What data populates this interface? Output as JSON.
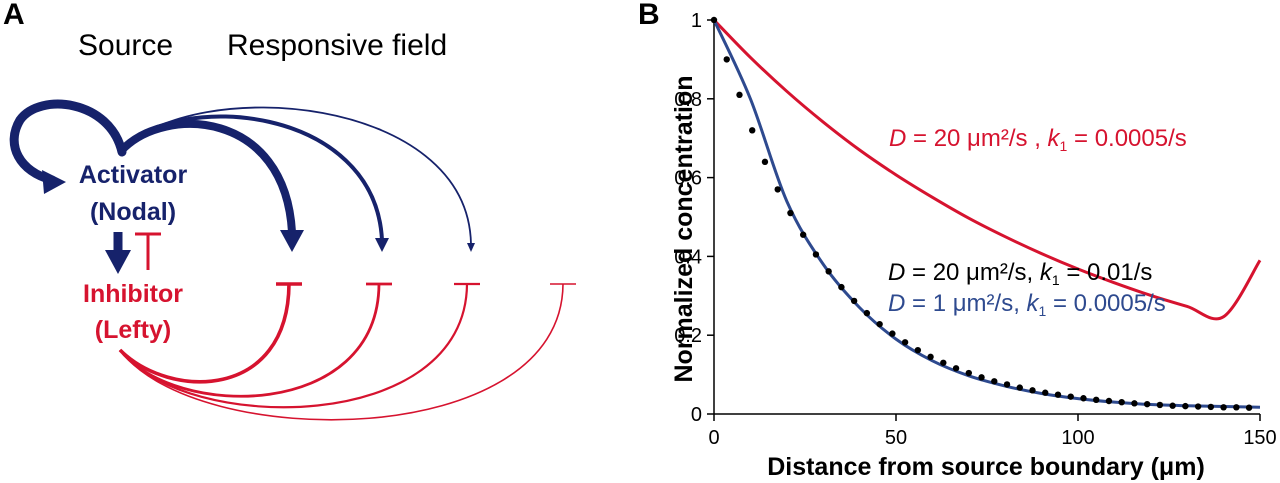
{
  "colors": {
    "activator": "#16226b",
    "inhibitor": "#d6132f",
    "fit_blue": "#2e4a8f",
    "black": "#000000"
  },
  "panel_a": {
    "label": "A",
    "header_source": "Source",
    "header_field": "Responsive field",
    "activator_line1": "Activator",
    "activator_line2": "(Nodal)",
    "inhibitor_line1": "Inhibitor",
    "inhibitor_line2": "(Lefty)"
  },
  "panel_b": {
    "label": "B",
    "annotations": {
      "red": {
        "D": "D",
        "mid": " = 20 μm²/s ,  ",
        "k": "k",
        "sub": "1",
        "end": " = 0.0005/s"
      },
      "black": {
        "D": "D",
        "mid": " = 20 μm²/s,  ",
        "k": "k",
        "sub": "1",
        "end": " = 0.01/s"
      },
      "blue": {
        "D": "D",
        "mid": " = 1 μm²/s,  ",
        "k": "k",
        "sub": "1",
        "end": " = 0.0005/s"
      }
    }
  },
  "chart_data": {
    "type": "line",
    "xlabel": "Distance from source boundary (μm)",
    "ylabel": "Normalized concentration",
    "xlim": [
      0,
      150
    ],
    "ylim": [
      0,
      1
    ],
    "x_ticks": [
      0,
      50,
      100,
      150
    ],
    "y_ticks": [
      0,
      0.2,
      0.4,
      0.6,
      0.8,
      1
    ],
    "y_tick_labels": [
      "0",
      "0.2",
      "0.4",
      "0.6",
      "0.8",
      "1"
    ],
    "grid": false,
    "series": [
      {
        "style": "line",
        "color": "#d6132f",
        "x": [
          0,
          10,
          20,
          30,
          40,
          50,
          60,
          70,
          80,
          90,
          100,
          110,
          120,
          130,
          140,
          150
        ],
        "y": [
          1,
          0.905,
          0.819,
          0.741,
          0.67,
          0.607,
          0.55,
          0.497,
          0.45,
          0.407,
          0.368,
          0.333,
          0.301,
          0.273,
          0.247,
          0.39
        ]
      },
      {
        "style": "line",
        "color": "#2e4a8f",
        "x": [
          0,
          10,
          20,
          30,
          40,
          50,
          60,
          70,
          80,
          90,
          100,
          110,
          120,
          130,
          140,
          150
        ],
        "y": [
          1,
          0.8,
          0.54,
          0.38,
          0.27,
          0.19,
          0.135,
          0.097,
          0.071,
          0.052,
          0.039,
          0.03,
          0.024,
          0.021,
          0.019,
          0.017
        ]
      },
      {
        "style": "dots",
        "color": "#000000",
        "x": [
          0,
          3.5,
          7,
          10.5,
          14,
          17.5,
          21,
          24.5,
          28,
          31.5,
          35,
          38.5,
          42,
          45.5,
          49,
          52.5,
          56,
          59.5,
          63,
          66.5,
          70,
          73.5,
          77,
          80.5,
          84,
          87.5,
          91,
          94.5,
          98,
          101.5,
          105,
          108.5,
          112,
          115.5,
          119,
          122.5,
          126,
          129.5,
          133,
          136.5,
          140,
          143.5,
          147
        ],
        "y": [
          1,
          0.9,
          0.81,
          0.72,
          0.64,
          0.57,
          0.51,
          0.455,
          0.405,
          0.362,
          0.322,
          0.287,
          0.256,
          0.228,
          0.204,
          0.182,
          0.162,
          0.145,
          0.13,
          0.116,
          0.104,
          0.093,
          0.083,
          0.075,
          0.067,
          0.06,
          0.054,
          0.049,
          0.044,
          0.04,
          0.036,
          0.033,
          0.03,
          0.027,
          0.025,
          0.023,
          0.021,
          0.02,
          0.019,
          0.018,
          0.017,
          0.017,
          0.016
        ]
      }
    ]
  }
}
